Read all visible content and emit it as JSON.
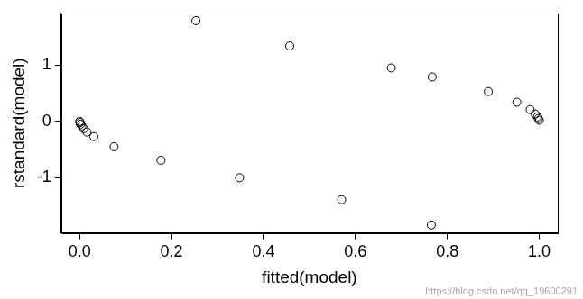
{
  "chart_data": {
    "type": "scatter",
    "x_label": "fitted(model)",
    "y_label": "rstandard(model)",
    "annotations": [
      "https://blog.csdn.net/qq_19600291"
    ],
    "x": [
      0.0,
      0.001,
      0.002,
      0.005,
      0.009,
      0.016,
      0.031,
      0.075,
      0.177,
      0.253,
      0.348,
      0.457,
      0.57,
      0.678,
      0.765,
      0.767,
      0.889,
      0.951,
      0.98,
      0.991,
      0.996,
      0.998,
      1.0
    ],
    "values": [
      0.0,
      -0.02,
      -0.05,
      -0.08,
      -0.13,
      -0.19,
      -0.27,
      -0.45,
      -0.69,
      1.79,
      -1.0,
      1.34,
      -1.39,
      0.95,
      -1.84,
      0.79,
      0.53,
      0.34,
      0.21,
      0.13,
      0.08,
      0.05,
      0.02
    ],
    "color": "#000000",
    "marker": "open circle",
    "xlim": [
      -0.04,
      1.04
    ],
    "ylim": [
      -1.98,
      1.92
    ],
    "xticks": [
      {
        "value": 0,
        "label": "0.0"
      },
      {
        "value": 0.2,
        "label": "0.2"
      },
      {
        "value": 0.4,
        "label": "0.4"
      },
      {
        "value": 0.6,
        "label": "0.6"
      },
      {
        "value": 0.8,
        "label": "0.8"
      },
      {
        "value": 1,
        "label": "1.0"
      }
    ],
    "yticks": [
      -1,
      0,
      1
    ],
    "grid": false
  }
}
